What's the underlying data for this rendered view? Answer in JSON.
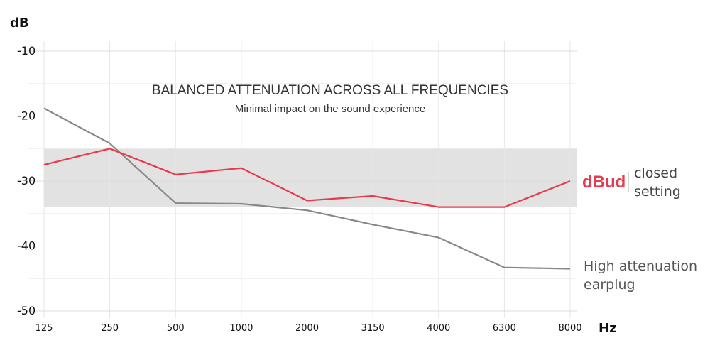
{
  "chart_data": {
    "type": "line",
    "title": "BALANCED ATTENUATION ACROSS ALL FREQUENCIES",
    "subtitle": "Minimal impact on the sound experience",
    "ylabel": "dB",
    "xlabel": "Hz",
    "categories": [
      "125",
      "250",
      "500",
      "1000",
      "2000",
      "3150",
      "4000",
      "6300",
      "8000"
    ],
    "yticks": [
      -10,
      -20,
      -30,
      -40,
      -50
    ],
    "ytick_labels": [
      "-10",
      "-20",
      "-30",
      "-40",
      "-50"
    ],
    "ylim": [
      -50,
      -10
    ],
    "grid": true,
    "band": {
      "from": -25,
      "to": -34
    },
    "series": [
      {
        "name": "dBud closed setting",
        "brand": "dBud",
        "label_lines": [
          "closed",
          "setting"
        ],
        "color": "#e83a4c",
        "values": [
          -27.5,
          -25,
          -29,
          -28,
          -33,
          -32.3,
          -34,
          -34,
          -30
        ]
      },
      {
        "name": "High attenuation earplug",
        "label_lines": [
          "High attenuation",
          "earplug"
        ],
        "color": "#888888",
        "values": [
          -18.8,
          -24.2,
          -33.4,
          -33.5,
          -34.5,
          -36.7,
          -38.7,
          -43.3,
          -43.5
        ]
      }
    ]
  }
}
